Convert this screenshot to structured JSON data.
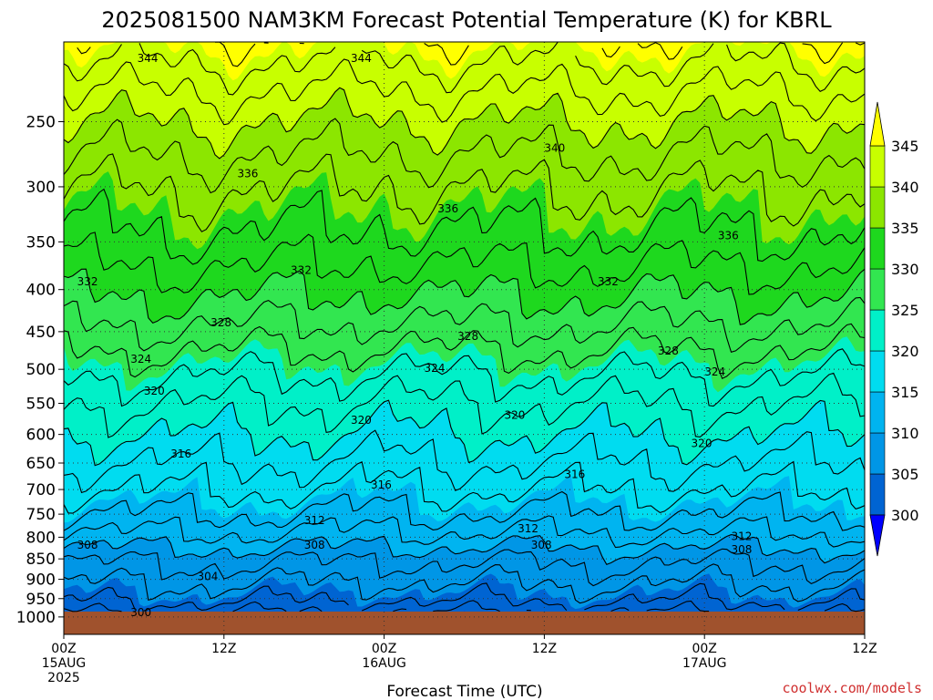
{
  "chart_data": {
    "type": "heatmap",
    "title": "2025081500 NAM3KM Forecast Potential Temperature (K) for KBRL",
    "xlabel": "Forecast Time (UTC)",
    "ylabel": "",
    "units": "K",
    "y_axis": {
      "scale": "log",
      "reversed": true,
      "range": [
        1050,
        200
      ],
      "ticks": [
        250,
        300,
        350,
        400,
        450,
        500,
        550,
        600,
        650,
        700,
        750,
        800,
        850,
        900,
        950,
        1000
      ],
      "tick_labels": [
        "250",
        "300",
        "350",
        "400",
        "450",
        "500",
        "550",
        "600",
        "650",
        "700",
        "750",
        "800",
        "850",
        "900",
        "950",
        "1000"
      ]
    },
    "x_axis": {
      "range_hours": [
        0,
        60
      ],
      "ticks_hours": [
        0,
        12,
        24,
        36,
        48,
        60
      ],
      "tick_labels": [
        [
          "00Z",
          "15AUG",
          "2025"
        ],
        [
          "12Z"
        ],
        [
          "00Z",
          "16AUG"
        ],
        [
          "12Z"
        ],
        [
          "00Z",
          "17AUG"
        ],
        [
          "12Z"
        ]
      ]
    },
    "grid": true,
    "colorbar": {
      "ticks": [
        345,
        340,
        335,
        330,
        325,
        320,
        315,
        310,
        305,
        300
      ],
      "bands": [
        {
          "from": 345,
          "to": 350,
          "color": "#ffff00"
        },
        {
          "from": 340,
          "to": 345,
          "color": "#c8ff00"
        },
        {
          "from": 335,
          "to": 340,
          "color": "#8ce600"
        },
        {
          "from": 330,
          "to": 335,
          "color": "#1ed81e"
        },
        {
          "from": 325,
          "to": 330,
          "color": "#32e650"
        },
        {
          "from": 320,
          "to": 325,
          "color": "#00f0c8"
        },
        {
          "from": 315,
          "to": 320,
          "color": "#00dcf0"
        },
        {
          "from": 310,
          "to": 315,
          "color": "#00b4f0"
        },
        {
          "from": 305,
          "to": 310,
          "color": "#0096e6"
        },
        {
          "from": 300,
          "to": 305,
          "color": "#0064d2"
        }
      ],
      "over_color": "#ffff00",
      "under_color": "#0000ff"
    },
    "profile": {
      "pressure_hPa": [
        1000,
        975,
        950,
        925,
        900,
        875,
        850,
        825,
        800,
        775,
        750,
        725,
        700,
        675,
        650,
        625,
        600,
        575,
        550,
        525,
        500,
        475,
        450,
        425,
        400,
        375,
        350,
        325,
        300,
        275,
        250,
        225,
        200
      ],
      "theta_K": [
        301.0,
        303.0,
        304.5,
        305.5,
        306.5,
        307.5,
        308.5,
        310.0,
        311.5,
        312.8,
        314.0,
        315.0,
        316.2,
        317.0,
        318.0,
        319.0,
        320.0,
        321.0,
        322.0,
        323.2,
        324.5,
        326.0,
        327.5,
        329.0,
        330.5,
        332.0,
        333.5,
        334.8,
        336.2,
        338.0,
        340.0,
        342.5,
        345.5
      ]
    },
    "contour_levels": [
      300,
      302,
      304,
      306,
      308,
      310,
      312,
      314,
      316,
      318,
      320,
      322,
      324,
      326,
      328,
      330,
      332,
      334,
      336,
      338,
      340,
      342,
      344,
      346
    ],
    "contour_labels": [
      {
        "t": 5.5,
        "p": 210,
        "value": "344"
      },
      {
        "t": 21.5,
        "p": 210,
        "value": "344"
      },
      {
        "t": 36.0,
        "p": 270,
        "value": "340"
      },
      {
        "t": 13.0,
        "p": 290,
        "value": "336"
      },
      {
        "t": 28.0,
        "p": 320,
        "value": "336"
      },
      {
        "t": 49.0,
        "p": 345,
        "value": "336"
      },
      {
        "t": 1.0,
        "p": 392,
        "value": "332"
      },
      {
        "t": 17.0,
        "p": 380,
        "value": "332"
      },
      {
        "t": 40.0,
        "p": 392,
        "value": "332"
      },
      {
        "t": 11.0,
        "p": 440,
        "value": "328"
      },
      {
        "t": 29.5,
        "p": 457,
        "value": "328"
      },
      {
        "t": 44.5,
        "p": 476,
        "value": "328"
      },
      {
        "t": 5.0,
        "p": 487,
        "value": "324"
      },
      {
        "t": 27.0,
        "p": 500,
        "value": "324"
      },
      {
        "t": 48.0,
        "p": 505,
        "value": "324"
      },
      {
        "t": 6.0,
        "p": 533,
        "value": "320"
      },
      {
        "t": 21.5,
        "p": 578,
        "value": "320"
      },
      {
        "t": 33.0,
        "p": 570,
        "value": "320"
      },
      {
        "t": 47.0,
        "p": 617,
        "value": "320"
      },
      {
        "t": 8.0,
        "p": 635,
        "value": "316"
      },
      {
        "t": 23.0,
        "p": 693,
        "value": "316"
      },
      {
        "t": 37.5,
        "p": 673,
        "value": "316"
      },
      {
        "t": 18.0,
        "p": 765,
        "value": "312"
      },
      {
        "t": 34.0,
        "p": 783,
        "value": "312"
      },
      {
        "t": 50.0,
        "p": 800,
        "value": "312"
      },
      {
        "t": 1.0,
        "p": 820,
        "value": "308"
      },
      {
        "t": 18.0,
        "p": 820,
        "value": "308"
      },
      {
        "t": 35.0,
        "p": 820,
        "value": "308"
      },
      {
        "t": 50.0,
        "p": 830,
        "value": "308"
      },
      {
        "t": 10.0,
        "p": 895,
        "value": "304"
      },
      {
        "t": 5.0,
        "p": 990,
        "value": "300"
      }
    ],
    "ground_below_hPa": 985
  },
  "credit": "coolwx.com/models"
}
